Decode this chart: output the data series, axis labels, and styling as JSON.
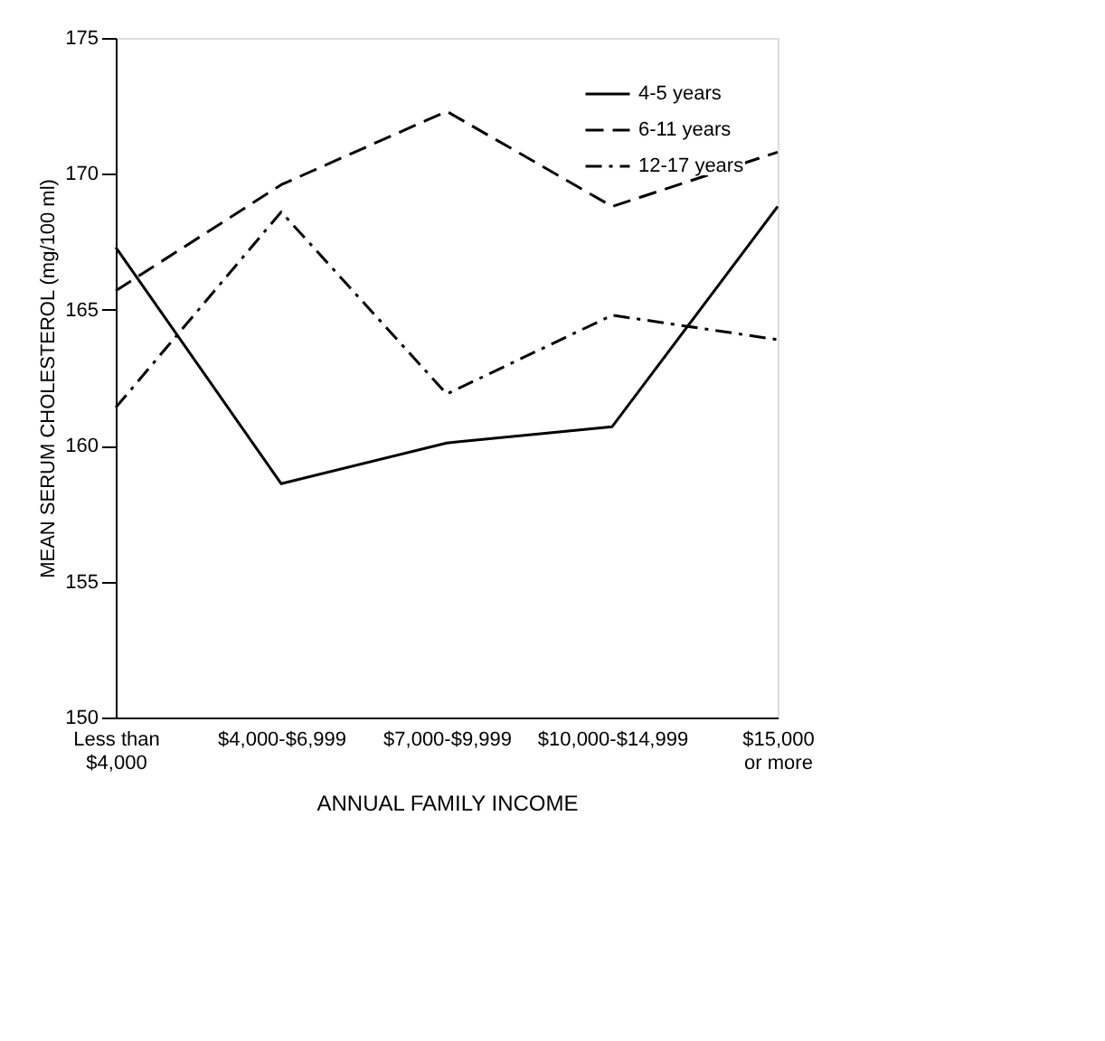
{
  "chart_data": {
    "type": "line",
    "categories": [
      "Less than\n$4,000",
      "$4,000-$6,999",
      "$7,000-$9,999",
      "$10,000-$14,999",
      "$15,000\nor more"
    ],
    "series": [
      {
        "name": "4-5 years",
        "color": "#000000",
        "line_style": "solid",
        "values": [
          167.3,
          158.6,
          160.1,
          160.7,
          168.8
        ]
      },
      {
        "name": "6-11 years",
        "color": "#000000",
        "line_style": "dashed",
        "values": [
          165.7,
          169.6,
          172.3,
          168.8,
          170.8
        ]
      },
      {
        "name": "12-17 years",
        "color": "#000000",
        "line_style": "dashdot",
        "values": [
          161.4,
          168.6,
          161.9,
          164.8,
          163.9
        ]
      }
    ],
    "xlabel": "ANNUAL FAMILY INCOME",
    "ylabel": "MEAN SERUM CHOLESTEROL (mg/100 ml)",
    "ylim": [
      150,
      175
    ],
    "yticks": [
      150,
      155,
      160,
      165,
      170,
      175
    ],
    "grid": false,
    "legend": "top right",
    "marker": "none"
  }
}
